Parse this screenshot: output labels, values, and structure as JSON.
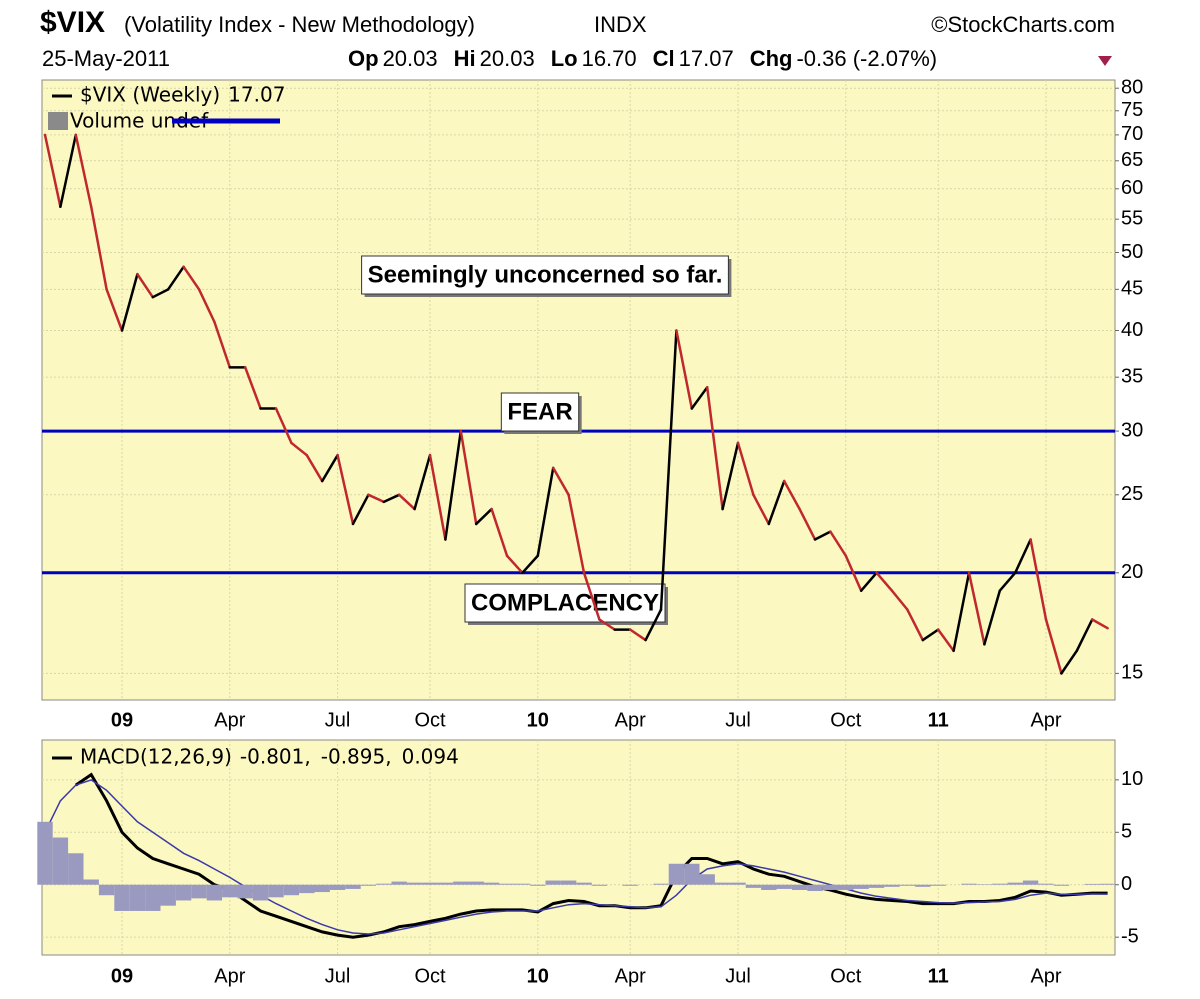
{
  "header": {
    "symbol": "$VIX",
    "description": "(Volatility Index - New Methodology)",
    "exchange": "INDX",
    "source": "©StockCharts.com",
    "date": "25-May-2011",
    "quote": [
      {
        "label": "Op",
        "value": "20.03"
      },
      {
        "label": "Hi",
        "value": "20.03"
      },
      {
        "label": "Lo",
        "value": "16.70"
      },
      {
        "label": "Cl",
        "value": "17.07"
      },
      {
        "label": "Chg",
        "value": "-0.36 (-2.07%)"
      }
    ]
  },
  "chart_data": [
    {
      "type": "line",
      "log_scale": true,
      "grid": true,
      "categories": [
        null,
        null,
        null,
        null,
        null,
        "09",
        null,
        null,
        null,
        null,
        null,
        null,
        "Apr",
        null,
        null,
        null,
        null,
        null,
        null,
        "Jul",
        null,
        null,
        null,
        null,
        null,
        "Oct",
        null,
        null,
        null,
        null,
        null,
        null,
        "10",
        null,
        null,
        null,
        null,
        null,
        "Apr",
        null,
        null,
        null,
        null,
        null,
        null,
        "Jul",
        null,
        null,
        null,
        null,
        null,
        null,
        "Oct",
        null,
        null,
        null,
        null,
        null,
        "11",
        null,
        null,
        null,
        null,
        null,
        null,
        "Apr",
        null,
        null,
        null,
        null
      ],
      "series": [
        {
          "name": "$VIX (Weekly)",
          "color": "#c0282d",
          "up_color": "#000000",
          "values": [
            70,
            57,
            70,
            57,
            45,
            40,
            47,
            44,
            45,
            48,
            45,
            41,
            36,
            36,
            32,
            32,
            29,
            28,
            26,
            28,
            23,
            25,
            24.5,
            25,
            24,
            28,
            22,
            30,
            23,
            24,
            21,
            20,
            21,
            27,
            25,
            20,
            17.5,
            17,
            17,
            16.5,
            18,
            40,
            32,
            34,
            24,
            29,
            25,
            23,
            26,
            24,
            22,
            22.5,
            21,
            19,
            20,
            19,
            18,
            16.5,
            17,
            16,
            20,
            16.3,
            19,
            20,
            22,
            17.5,
            15,
            16,
            17.5,
            17.07
          ]
        }
      ],
      "secondary_legend": "Volume undef",
      "ylim": [
        13.9,
        81.9
      ],
      "yticks": [
        15,
        20,
        25,
        30,
        35,
        40,
        45,
        50,
        55,
        60,
        65,
        70,
        75,
        80
      ],
      "hlines": [
        {
          "value": 30,
          "label": "FEAR",
          "color": "#0000c0"
        },
        {
          "value": 20,
          "label": "COMPLACENCY",
          "color": "#0000c0"
        }
      ],
      "annotations": [
        "Seemingly unconcerned so far."
      ]
    },
    {
      "type": "line",
      "grid": true,
      "categories": [
        null,
        null,
        null,
        null,
        null,
        "09",
        null,
        null,
        null,
        null,
        null,
        null,
        "Apr",
        null,
        null,
        null,
        null,
        null,
        null,
        "Jul",
        null,
        null,
        null,
        null,
        null,
        "Oct",
        null,
        null,
        null,
        null,
        null,
        null,
        "10",
        null,
        null,
        null,
        null,
        null,
        "Apr",
        null,
        null,
        null,
        null,
        null,
        null,
        "Jul",
        null,
        null,
        null,
        null,
        null,
        null,
        "Oct",
        null,
        null,
        null,
        null,
        null,
        "11",
        null,
        null,
        null,
        null,
        null,
        null,
        "Apr",
        null,
        null,
        null,
        null
      ],
      "legend_title": "MACD(12,26,9)",
      "legend_separator": ",",
      "series": [
        {
          "name": "MACD",
          "style": "line",
          "color": "#000000",
          "values": [
            null,
            null,
            9.5,
            10.5,
            8,
            5,
            3.5,
            2.5,
            2,
            1.5,
            1,
            0,
            -0.5,
            -1.5,
            -2.5,
            -3,
            -3.5,
            -4,
            -4.5,
            -4.8,
            -5,
            -4.8,
            -4.5,
            -4,
            -3.8,
            -3.5,
            -3.2,
            -2.8,
            -2.5,
            -2.4,
            -2.4,
            -2.4,
            -2.6,
            -1.8,
            -1.5,
            -1.6,
            -2,
            -2,
            -2.2,
            -2.2,
            -2,
            1,
            2.5,
            2.5,
            2,
            2.2,
            1.5,
            1,
            0.8,
            0.3,
            -0.2,
            -0.5,
            -0.9,
            -1.2,
            -1.4,
            -1.5,
            -1.6,
            -1.8,
            -1.8,
            -1.8,
            -1.6,
            -1.6,
            -1.5,
            -1.2,
            -0.6,
            -0.7,
            -1,
            -0.9,
            -0.8,
            -0.801
          ]
        },
        {
          "name": "Signal",
          "style": "line",
          "color": "#3a3aa8",
          "values": [
            5,
            8,
            9.5,
            10,
            9,
            7.5,
            6,
            5,
            4,
            3,
            2.3,
            1.5,
            0.7,
            -0.2,
            -1,
            -1.8,
            -2.5,
            -3.2,
            -3.8,
            -4.3,
            -4.6,
            -4.7,
            -4.6,
            -4.3,
            -4,
            -3.7,
            -3.4,
            -3.1,
            -2.8,
            -2.6,
            -2.5,
            -2.5,
            -2.5,
            -2.2,
            -1.9,
            -1.8,
            -1.9,
            -2,
            -2.1,
            -2.2,
            -2.1,
            -1,
            0.5,
            1.5,
            1.8,
            2,
            1.8,
            1.5,
            1.2,
            0.8,
            0.4,
            0,
            -0.4,
            -0.8,
            -1.1,
            -1.3,
            -1.5,
            -1.6,
            -1.7,
            -1.75,
            -1.7,
            -1.65,
            -1.6,
            -1.4,
            -1,
            -0.8,
            -0.9,
            -0.9,
            -0.88,
            -0.895
          ]
        },
        {
          "name": "Histogram",
          "style": "histogram",
          "color": "#9a9ac0",
          "values": [
            6,
            4.5,
            3,
            0.5,
            -1,
            -2.5,
            -2.5,
            -2.5,
            -2,
            -1.5,
            -1.3,
            -1.5,
            -1.2,
            -1.3,
            -1.5,
            -1.2,
            -1,
            -0.8,
            -0.7,
            -0.5,
            -0.4,
            -0.1,
            0.1,
            0.3,
            0.2,
            0.2,
            0.2,
            0.3,
            0.3,
            0.2,
            0.1,
            0.1,
            -0.1,
            0.4,
            0.4,
            0.2,
            -0.1,
            0,
            -0.1,
            0,
            0.1,
            2,
            2,
            1,
            0.2,
            0.2,
            -0.3,
            -0.5,
            -0.4,
            -0.5,
            -0.6,
            -0.5,
            -0.5,
            -0.4,
            -0.3,
            -0.2,
            -0.1,
            -0.2,
            -0.1,
            0,
            0.1,
            0.05,
            0.1,
            0.2,
            0.4,
            0.1,
            -0.1,
            0,
            0.08,
            0.094
          ]
        }
      ],
      "ylim": [
        -6.7,
        13.8
      ],
      "yticks": [
        -5,
        0,
        5,
        10
      ]
    }
  ]
}
